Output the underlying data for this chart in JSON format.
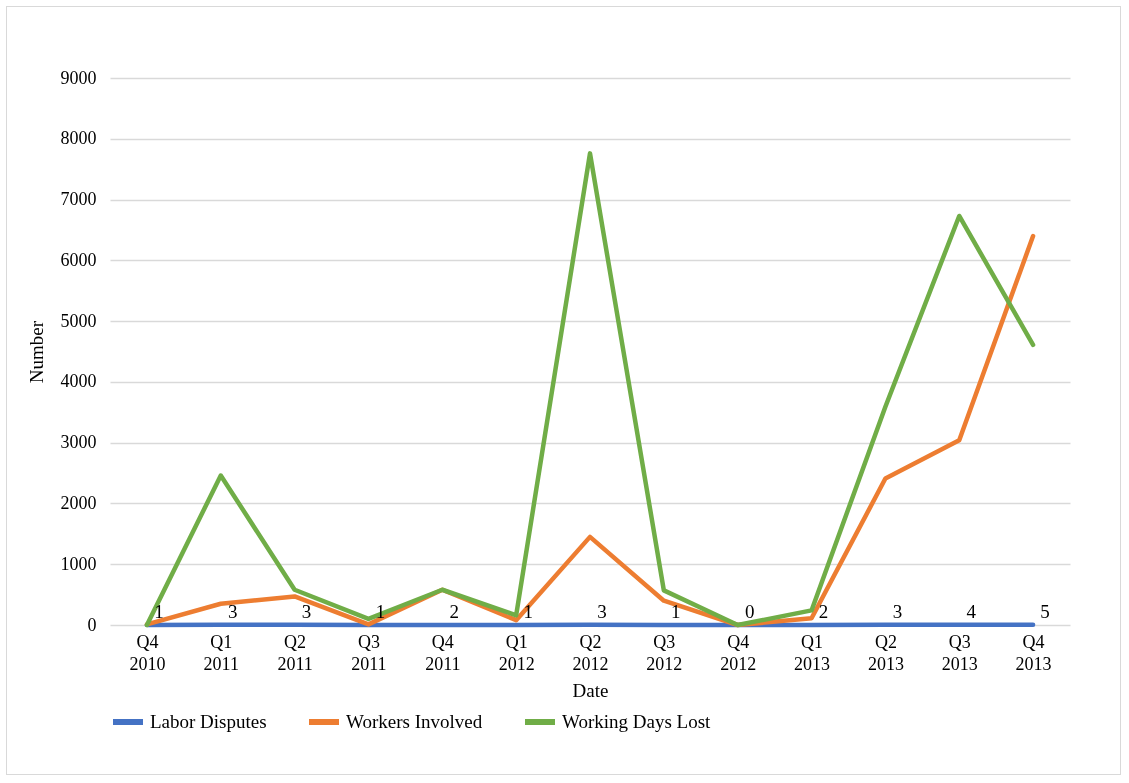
{
  "chart_data": {
    "type": "line",
    "xlabel": "Date",
    "ylabel": "Number",
    "categories": [
      "Q4 2010",
      "Q1 2011",
      "Q2 2011",
      "Q3 2011",
      "Q4 2011",
      "Q1 2012",
      "Q2 2012",
      "Q3 2012",
      "Q4 2012",
      "Q1 2013",
      "Q2 2013",
      "Q3 2013",
      "Q4 2013"
    ],
    "series": [
      {
        "name": "Labor Disputes",
        "color": "#4472c4",
        "values": [
          1,
          3,
          3,
          1,
          2,
          1,
          3,
          1,
          0,
          2,
          3,
          4,
          5
        ],
        "value_labels": [
          "1",
          "3",
          "3",
          "1",
          "2",
          "1",
          "3",
          "1",
          "0",
          "2",
          "3",
          "4",
          "5"
        ]
      },
      {
        "name": "Workers Involved",
        "color": "#ed7d31",
        "values": [
          10,
          350,
          470,
          10,
          580,
          80,
          1450,
          400,
          0,
          110,
          2410,
          3040,
          6400
        ]
      },
      {
        "name": "Working Days Lost",
        "color": "#70ad47",
        "values": [
          0,
          2460,
          580,
          100,
          580,
          160,
          7760,
          570,
          0,
          240,
          3590,
          6730,
          4610
        ]
      }
    ],
    "ylim": [
      0,
      9000
    ],
    "yticks": [
      0,
      1000,
      2000,
      3000,
      4000,
      5000,
      6000,
      7000,
      8000,
      9000
    ],
    "grid": "y",
    "legend": "bottom",
    "line_style": "solid",
    "marker": "none"
  }
}
